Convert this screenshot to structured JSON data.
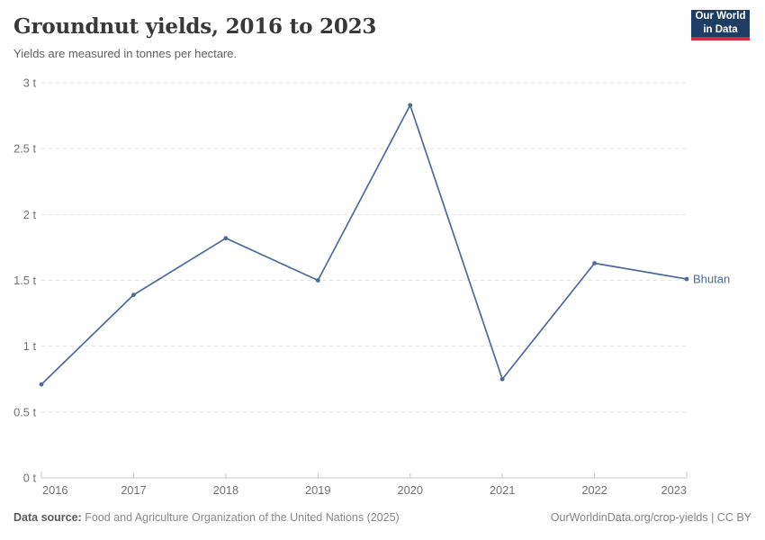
{
  "header": {
    "title": "Groundnut yields, 2016 to 2023",
    "subtitle": "Yields are measured in tonnes per hectare.",
    "logo": {
      "line1": "Our World",
      "line2": "in Data"
    }
  },
  "footer": {
    "datasource_label": "Data source:",
    "datasource_text": " Food and Agriculture Organization of the United Nations (2025)",
    "credit": "OurWorldinData.org/crop-yields | CC BY"
  },
  "colors": {
    "line": "#4C6A9C",
    "grid": "#e2e2e2",
    "axis": "#c8c8c8",
    "tick_text": "#737373",
    "logo_bg": "#1d3d63",
    "logo_red": "#d22e41"
  },
  "chart_data": {
    "type": "line",
    "title": "Groundnut yields, 2016 to 2023",
    "subtitle": "Yields are measured in tonnes per hectare.",
    "unit": "t",
    "ylabel": "tonnes per hectare",
    "x": [
      2016,
      2017,
      2018,
      2019,
      2020,
      2021,
      2022,
      2023
    ],
    "series": [
      {
        "name": "Bhutan",
        "values": [
          0.71,
          1.39,
          1.82,
          1.5,
          2.83,
          0.75,
          1.63,
          1.51
        ]
      }
    ],
    "ylim": [
      0,
      3
    ],
    "yticks": [
      0,
      0.5,
      1,
      1.5,
      2,
      2.5,
      3
    ],
    "ytick_suffix": " t",
    "grid": "horizontal-dashed",
    "legend": "end-of-line-label"
  }
}
